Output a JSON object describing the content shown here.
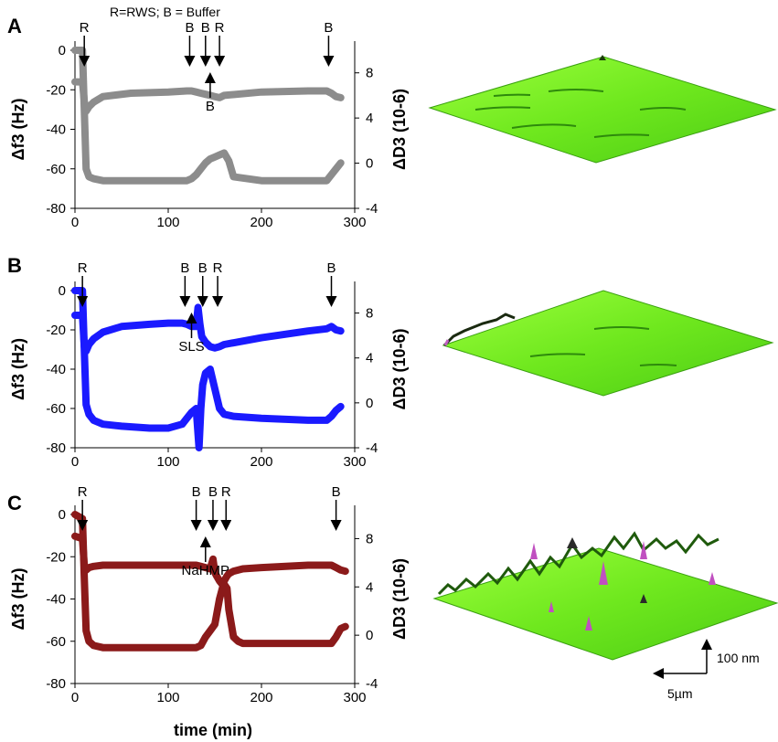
{
  "legend_text": "R=RWS; B = Buffer",
  "shared_xlabel": "time (min)",
  "scale_bar": {
    "vertical": "100 nm",
    "horizontal": "5µm"
  },
  "chart_data": [
    {
      "panel": "A",
      "type": "line",
      "color": "#8c8c8c",
      "xlim": [
        0,
        300
      ],
      "xticks": [
        "0",
        "100",
        "200",
        "300"
      ],
      "ylim_left": [
        -80,
        0
      ],
      "yticks_left": [
        "0",
        "-20",
        "-40",
        "-60",
        "-80"
      ],
      "ylabel_left": "Δf3 (Hz)",
      "ylim_right": [
        -4,
        10
      ],
      "yticks_right": [
        "8",
        "4",
        "0",
        "-4"
      ],
      "ylabel_right": "ΔD3 (10-6)",
      "series": [
        {
          "axis": "left",
          "x": [
            0,
            8,
            10,
            12,
            15,
            20,
            30,
            40,
            60,
            80,
            100,
            120,
            125,
            130,
            135,
            140,
            145,
            150,
            155,
            160,
            165,
            170,
            200,
            230,
            260,
            270,
            275,
            280,
            285
          ],
          "y": [
            0,
            0,
            -30,
            -60,
            -64,
            -65,
            -66,
            -66,
            -66,
            -66,
            -66,
            -66,
            -65,
            -63,
            -60,
            -57,
            -55,
            -54,
            -53,
            -52,
            -56,
            -64,
            -66,
            -66,
            -66,
            -66,
            -63,
            -60,
            -57
          ]
        },
        {
          "axis": "right",
          "x": [
            0,
            8,
            10,
            12,
            15,
            20,
            30,
            60,
            100,
            120,
            125,
            130,
            135,
            140,
            145,
            150,
            155,
            160,
            200,
            250,
            270,
            275,
            280,
            285
          ],
          "y": [
            7.2,
            7.2,
            5.5,
            4.6,
            5.0,
            5.4,
            5.9,
            6.2,
            6.3,
            6.4,
            6.4,
            6.3,
            6.2,
            6.1,
            6.0,
            5.9,
            5.8,
            6.0,
            6.3,
            6.4,
            6.4,
            6.2,
            5.9,
            5.8
          ]
        }
      ],
      "annotations": [
        {
          "label": "R",
          "x": 10,
          "dir": "down"
        },
        {
          "label": "B",
          "x": 123,
          "dir": "down"
        },
        {
          "label": "B",
          "x": 140,
          "dir": "down"
        },
        {
          "label": "R",
          "x": 155,
          "dir": "down"
        },
        {
          "label": "B",
          "x": 145,
          "dir": "up"
        },
        {
          "label": "B",
          "x": 272,
          "dir": "down"
        }
      ]
    },
    {
      "panel": "B",
      "type": "line",
      "color": "#1a1aff",
      "xlim": [
        0,
        300
      ],
      "xticks": [
        "0",
        "100",
        "200",
        "300"
      ],
      "ylim_left": [
        -80,
        0
      ],
      "yticks_left": [
        "0",
        "-20",
        "-40",
        "-60",
        "-80"
      ],
      "ylabel_left": "Δf3 (Hz)",
      "ylim_right": [
        -4,
        10
      ],
      "yticks_right": [
        "8",
        "4",
        "0",
        "-4"
      ],
      "ylabel_right": "ΔD3 (10-6)",
      "series": [
        {
          "axis": "left",
          "x": [
            0,
            8,
            10,
            12,
            15,
            20,
            30,
            50,
            80,
            100,
            115,
            120,
            125,
            130,
            133,
            135,
            137,
            140,
            145,
            150,
            155,
            160,
            170,
            200,
            250,
            270,
            275,
            280,
            285
          ],
          "y": [
            0,
            0,
            -30,
            -58,
            -63,
            -66,
            -68,
            -69,
            -70,
            -70,
            -68,
            -65,
            -62,
            -60,
            -80,
            -60,
            -48,
            -42,
            -40,
            -50,
            -60,
            -63,
            -64,
            -65,
            -66,
            -66,
            -64,
            -61,
            -59
          ]
        },
        {
          "axis": "right",
          "x": [
            0,
            8,
            10,
            12,
            15,
            20,
            30,
            50,
            80,
            100,
            115,
            120,
            125,
            130,
            132,
            134,
            136,
            140,
            145,
            150,
            155,
            160,
            200,
            250,
            270,
            275,
            280,
            285
          ],
          "y": [
            7.8,
            7.8,
            5.0,
            4.6,
            5.2,
            5.7,
            6.3,
            6.8,
            7.0,
            7.1,
            7.1,
            7.0,
            6.8,
            6.8,
            8.5,
            7.0,
            5.9,
            5.4,
            5.0,
            4.9,
            5.0,
            5.2,
            5.8,
            6.4,
            6.6,
            6.8,
            6.5,
            6.4
          ]
        }
      ],
      "annotations": [
        {
          "label": "R",
          "x": 8,
          "dir": "down"
        },
        {
          "label": "B",
          "x": 118,
          "dir": "down"
        },
        {
          "label": "B",
          "x": 137,
          "dir": "down"
        },
        {
          "label": "R",
          "x": 153,
          "dir": "down"
        },
        {
          "label": "SLS",
          "x": 125,
          "dir": "up"
        },
        {
          "label": "B",
          "x": 275,
          "dir": "down"
        }
      ]
    },
    {
      "panel": "C",
      "type": "line",
      "color": "#8b1a1a",
      "xlim": [
        0,
        300
      ],
      "xticks": [
        "0",
        "100",
        "200",
        "300"
      ],
      "ylim_left": [
        -80,
        0
      ],
      "yticks_left": [
        "0",
        "-20",
        "-40",
        "-60",
        "-80"
      ],
      "ylabel_left": "Δf3 (Hz)",
      "ylim_right": [
        -4,
        10
      ],
      "yticks_right": [
        "8",
        "4",
        "0",
        "-4"
      ],
      "ylabel_right": "ΔD3 (10-6)",
      "series": [
        {
          "axis": "left",
          "x": [
            0,
            8,
            10,
            12,
            15,
            20,
            30,
            60,
            100,
            130,
            135,
            140,
            145,
            150,
            155,
            158,
            160,
            163,
            165,
            170,
            175,
            180,
            200,
            250,
            275,
            280,
            285,
            290
          ],
          "y": [
            0,
            -2,
            -30,
            -55,
            -60,
            -62,
            -63,
            -63,
            -63,
            -63,
            -62,
            -58,
            -55,
            -52,
            -40,
            -35,
            -33,
            -35,
            -45,
            -58,
            -60,
            -61,
            -61,
            -61,
            -61,
            -58,
            -54,
            -53
          ]
        },
        {
          "axis": "right",
          "x": [
            0,
            8,
            10,
            12,
            15,
            20,
            30,
            60,
            100,
            130,
            135,
            140,
            145,
            148,
            150,
            152,
            155,
            158,
            160,
            163,
            165,
            170,
            180,
            200,
            250,
            275,
            280,
            285,
            290
          ],
          "y": [
            8.2,
            8.0,
            5.8,
            5.4,
            5.6,
            5.7,
            5.8,
            5.8,
            5.8,
            5.8,
            5.7,
            5.6,
            5.5,
            6.3,
            5.2,
            4.9,
            4.5,
            4.2,
            4.5,
            4.9,
            5.1,
            5.3,
            5.5,
            5.6,
            5.8,
            5.8,
            5.6,
            5.4,
            5.3
          ]
        }
      ],
      "annotations": [
        {
          "label": "R",
          "x": 8,
          "dir": "down"
        },
        {
          "label": "B",
          "x": 130,
          "dir": "down"
        },
        {
          "label": "B",
          "x": 148,
          "dir": "down"
        },
        {
          "label": "R",
          "x": 162,
          "dir": "down"
        },
        {
          "label": "NaHMP",
          "x": 140,
          "dir": "up"
        },
        {
          "label": "B",
          "x": 280,
          "dir": "down"
        }
      ]
    }
  ]
}
